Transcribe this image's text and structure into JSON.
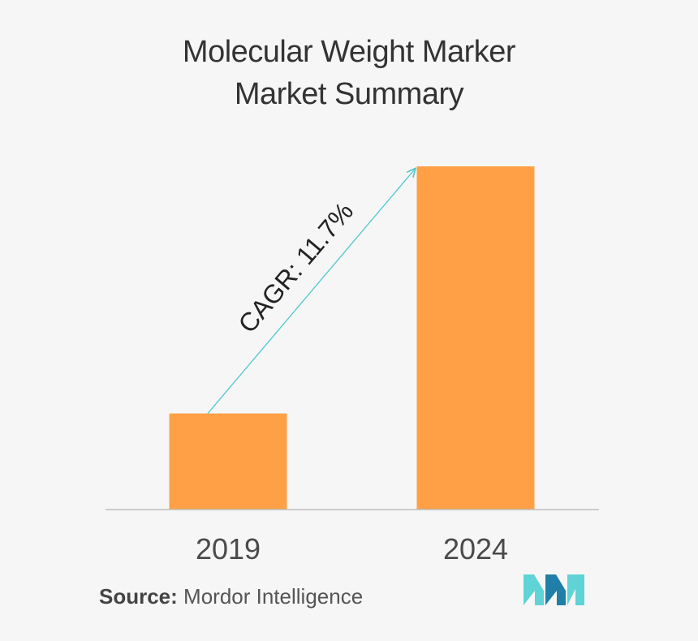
{
  "title": {
    "line1": "Molecular Weight Marker",
    "line2": "Market Summary"
  },
  "chart_data": {
    "type": "bar",
    "categories": [
      "2019",
      "2024"
    ],
    "values": [
      28,
      100
    ],
    "ylim": [
      0,
      100
    ],
    "title": "Molecular Weight Marker Market Summary",
    "xlabel": "",
    "ylabel": "",
    "grid": false,
    "legend": "none",
    "annotation": "CAGR: 11.7%",
    "colors": {
      "bar": "#ffa047",
      "arrow": "#4fc7cf",
      "axis": "#bdbdbd",
      "label": "#4a4a4a"
    }
  },
  "source": {
    "label": "Source:",
    "value": "Mordor Intelligence"
  },
  "logo": {
    "icon": "mordor-intelligence-logo",
    "color_dark": "#1f7fa8",
    "color_light": "#5fd3d6"
  }
}
